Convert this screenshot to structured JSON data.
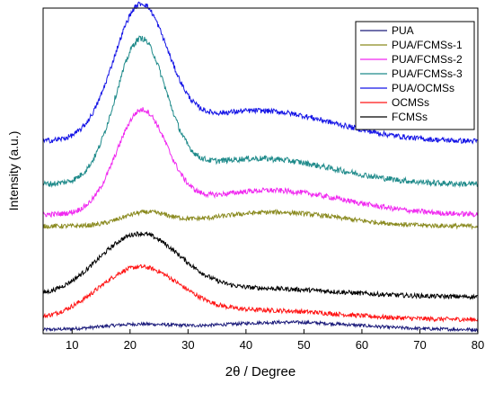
{
  "chart_data": {
    "type": "line",
    "title": "",
    "xlabel": "2θ / Degree",
    "ylabel": "Intensity (a.u.)",
    "xlim": [
      5,
      80
    ],
    "ylim": [
      0,
      100
    ],
    "x_ticks": [
      10,
      20,
      30,
      40,
      50,
      60,
      70,
      80
    ],
    "y_ticks_shown": false,
    "grid": false,
    "legend_position": "top-right",
    "legend": [
      {
        "label": "PUA",
        "color": "#1a1a7a"
      },
      {
        "label": "PUA/FCMSs-1",
        "color": "#8a8a1f"
      },
      {
        "label": "PUA/FCMSs-2",
        "color": "#f028f0"
      },
      {
        "label": "PUA/FCMSs-3",
        "color": "#1e8a8a"
      },
      {
        "label": "PUA/OCMSs",
        "color": "#1414e6"
      },
      {
        "label": "OCMSs",
        "color": "#ff1414"
      },
      {
        "label": "FCMSs",
        "color": "#000000"
      }
    ],
    "series": [
      {
        "name": "PUA",
        "color": "#1a1a7a",
        "baseline": 1.2,
        "peaks": [
          {
            "center": 21,
            "height": 1.5,
            "width": 6
          },
          {
            "center": 47,
            "height": 2.3,
            "width": 12
          }
        ],
        "noise": 0.5
      },
      {
        "name": "OCMSs",
        "color": "#ff1414",
        "baseline": 4.3,
        "peaks": [
          {
            "center": 21.5,
            "height": 15.5,
            "width": 7
          },
          {
            "center": 43,
            "height": 2.8,
            "width": 13
          }
        ],
        "noise": 0.7
      },
      {
        "name": "FCMSs",
        "color": "#000000",
        "baseline": 11.3,
        "peaks": [
          {
            "center": 21.5,
            "height": 18.8,
            "width": 7
          },
          {
            "center": 43,
            "height": 2.5,
            "width": 13
          }
        ],
        "noise": 0.7
      },
      {
        "name": "PUA/FCMSs-1",
        "color": "#8a8a1f",
        "baseline": 33.0,
        "peaks": [
          {
            "center": 22.5,
            "height": 3.8,
            "width": 4
          },
          {
            "center": 45,
            "height": 4.3,
            "width": 11
          }
        ],
        "noise": 0.7
      },
      {
        "name": "PUA/FCMSs-2",
        "color": "#f028f0",
        "baseline": 36.5,
        "peaks": [
          {
            "center": 22,
            "height": 30.5,
            "width": 4.3
          },
          {
            "center": 44,
            "height": 7.5,
            "width": 13
          }
        ],
        "noise": 0.8
      },
      {
        "name": "PUA/FCMSs-3",
        "color": "#1e8a8a",
        "baseline": 45.8,
        "peaks": [
          {
            "center": 21.8,
            "height": 42.5,
            "width": 4.3
          },
          {
            "center": 42,
            "height": 8.0,
            "width": 13
          }
        ],
        "noise": 0.9
      },
      {
        "name": "PUA/OCMSs",
        "color": "#1414e6",
        "baseline": 59.0,
        "peaks": [
          {
            "center": 21.8,
            "height": 39.5,
            "width": 4.6
          },
          {
            "center": 42,
            "height": 9.5,
            "width": 13
          }
        ],
        "noise": 0.8
      }
    ]
  }
}
